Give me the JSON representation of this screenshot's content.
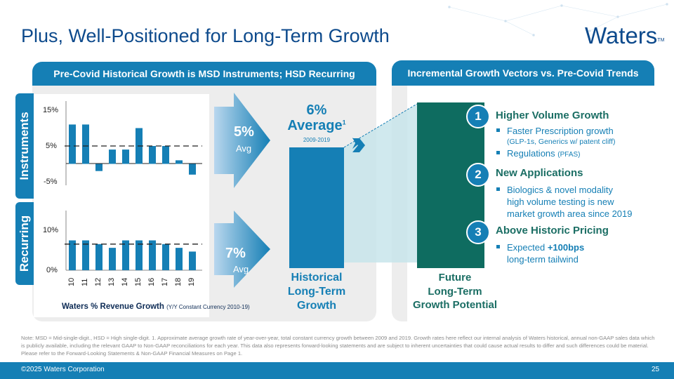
{
  "title": "Plus, Well-Positioned for Long-Term Growth",
  "logo": {
    "name": "Waters",
    "tm": "TM"
  },
  "left_panel": {
    "header": "Pre-Covid Historical Growth is MSD Instruments; HSD Recurring",
    "instruments_label": "Instruments",
    "recurring_label": "Recurring",
    "instruments_avg_value": "5%",
    "instruments_avg_label": "Avg",
    "recurring_avg_value": "7%",
    "recurring_avg_label": "Avg",
    "big_avg_value": "6%",
    "big_avg_label": "Average",
    "big_avg_sup": "1",
    "big_avg_years": "2009-2019",
    "historical_label_1": "Historical",
    "historical_label_2": "Long-Term",
    "historical_label_3": "Growth",
    "chart_caption": "Waters % Revenue Growth",
    "chart_caption_sub": "(Y/Y Constant Currency 2010-19)"
  },
  "right_panel": {
    "header": "Incremental Growth Vectors vs. Pre-Covid Trends",
    "future_label_1": "Future",
    "future_label_2": "Long-Term",
    "future_label_3": "Growth Potential",
    "vectors": [
      {
        "num": "1",
        "title": "Higher Volume Growth",
        "b1": "Faster Prescription growth",
        "b1b": "(GLP-1s, Generics w/ patent cliff)",
        "b2": "Regulations",
        "b2b": "(PFAS)"
      },
      {
        "num": "2",
        "title": "New Applications",
        "b1": "Biologics & novel modality",
        "b1b": "high volume testing is new",
        "b1c": "market growth area since 2019"
      },
      {
        "num": "3",
        "title": "Above Historic Pricing",
        "b1": "Expected",
        "b1bold": "+100bps",
        "b1b": "long-term tailwind"
      }
    ]
  },
  "chart_data": [
    {
      "type": "bar",
      "title": "Instruments",
      "categories": [
        "10",
        "11",
        "12",
        "13",
        "14",
        "15",
        "16",
        "17",
        "18",
        "19"
      ],
      "values": [
        11,
        11,
        -2,
        4,
        4,
        10,
        5,
        5,
        1,
        -3
      ],
      "average": 5,
      "ylim": [
        -5,
        15
      ],
      "yticks": [
        "15%",
        "5%",
        "-5%"
      ],
      "color": "#157fb5"
    },
    {
      "type": "bar",
      "title": "Recurring",
      "categories": [
        "10",
        "11",
        "12",
        "13",
        "14",
        "15",
        "16",
        "17",
        "18",
        "19"
      ],
      "values": [
        8,
        8,
        7,
        6,
        8,
        8,
        8,
        7,
        6,
        5
      ],
      "average": 7,
      "ylim": [
        0,
        16
      ],
      "yticks": [
        "10%",
        "0%"
      ],
      "color": "#157fb5"
    }
  ],
  "footer": {
    "note": "Note: MSD = Mid-single-digit., HSD = High single-digit. 1. Approximate average growth rate of year-over-year, total constant currency growth between 2009 and 2019. Growth rates here reflect our internal analysis of Waters historical, annual non-GAAP sales data which is publicly available, including the relevant GAAP to Non-GAAP reconciliations for each year. This data also represents forward-looking statements and are subject to inherent uncertainties that could cause actual results to differ and such differences could be material. Please refer to the Forward-Looking Statements & Non-GAAP Financial Measures on Page 1.",
    "copyright": "©2025 Waters Corporation",
    "page": "25"
  },
  "colors": {
    "brand_blue": "#157fb5",
    "title_blue": "#0d4a8c",
    "green": "#1b6e64"
  }
}
